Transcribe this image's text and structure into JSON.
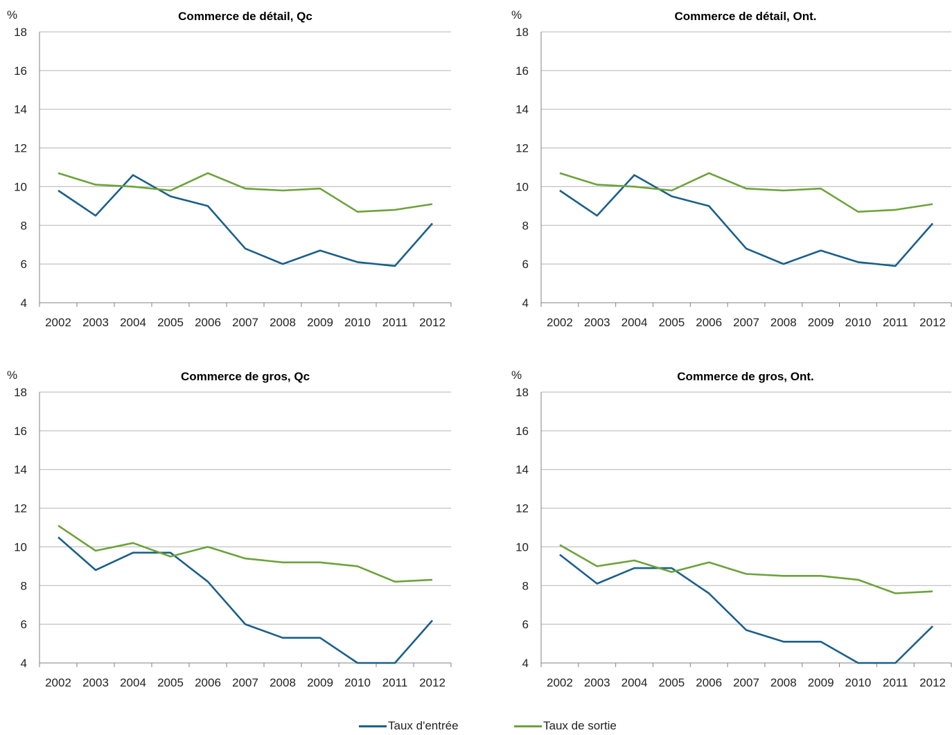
{
  "chart_data": [
    {
      "type": "line",
      "title": "Commerce de détail, Qc",
      "unit": "%",
      "categories": [
        "2002",
        "2003",
        "2004",
        "2005",
        "2006",
        "2007",
        "2008",
        "2009",
        "2010",
        "2011",
        "2012"
      ],
      "ylim": [
        4,
        18
      ],
      "yticks": [
        4,
        6,
        8,
        10,
        12,
        14,
        16,
        18
      ],
      "grid": true,
      "series": [
        {
          "name": "Taux d'entrée",
          "color": "#1a5f8a",
          "values": [
            9.8,
            8.5,
            10.6,
            9.5,
            9.0,
            6.8,
            6.0,
            6.7,
            6.1,
            5.9,
            8.1
          ]
        },
        {
          "name": "Taux de sortie",
          "color": "#6ca23a",
          "values": [
            10.7,
            10.1,
            10.0,
            9.8,
            10.7,
            9.9,
            9.8,
            9.9,
            8.7,
            8.8,
            9.1
          ]
        }
      ]
    },
    {
      "type": "line",
      "title": "Commerce de détail, Ont.",
      "unit": "%",
      "categories": [
        "2002",
        "2003",
        "2004",
        "2005",
        "2006",
        "2007",
        "2008",
        "2009",
        "2010",
        "2011",
        "2012"
      ],
      "ylim": [
        4,
        18
      ],
      "yticks": [
        4,
        6,
        8,
        10,
        12,
        14,
        16,
        18
      ],
      "grid": true,
      "series": [
        {
          "name": "Taux d'entrée",
          "color": "#1a5f8a",
          "values": [
            9.8,
            8.5,
            10.6,
            9.5,
            9.0,
            6.8,
            6.0,
            6.7,
            6.1,
            5.9,
            8.1
          ]
        },
        {
          "name": "Taux de sortie",
          "color": "#6ca23a",
          "values": [
            10.7,
            10.1,
            10.0,
            9.8,
            10.7,
            9.9,
            9.8,
            9.9,
            8.7,
            8.8,
            9.1
          ]
        }
      ]
    },
    {
      "type": "line",
      "title": "Commerce de gros, Qc",
      "unit": "%",
      "categories": [
        "2002",
        "2003",
        "2004",
        "2005",
        "2006",
        "2007",
        "2008",
        "2009",
        "2010",
        "2011",
        "2012"
      ],
      "ylim": [
        4,
        18
      ],
      "yticks": [
        4,
        6,
        8,
        10,
        12,
        14,
        16,
        18
      ],
      "grid": true,
      "series": [
        {
          "name": "Taux d'entrée",
          "color": "#1a5f8a",
          "values": [
            10.5,
            8.8,
            9.7,
            9.7,
            8.2,
            6.0,
            5.3,
            5.3,
            4.0,
            4.0,
            6.2
          ]
        },
        {
          "name": "Taux de sortie",
          "color": "#6ca23a",
          "values": [
            11.1,
            9.8,
            10.2,
            9.5,
            10.0,
            9.4,
            9.2,
            9.2,
            9.0,
            8.2,
            8.3
          ]
        }
      ]
    },
    {
      "type": "line",
      "title": "Commerce de gros, Ont.",
      "unit": "%",
      "categories": [
        "2002",
        "2003",
        "2004",
        "2005",
        "2006",
        "2007",
        "2008",
        "2009",
        "2010",
        "2011",
        "2012"
      ],
      "ylim": [
        4,
        18
      ],
      "yticks": [
        4,
        6,
        8,
        10,
        12,
        14,
        16,
        18
      ],
      "grid": true,
      "series": [
        {
          "name": "Taux d'entrée",
          "color": "#1a5f8a",
          "values": [
            9.6,
            8.1,
            8.9,
            8.9,
            7.6,
            5.7,
            5.1,
            5.1,
            4.0,
            4.0,
            5.9
          ]
        },
        {
          "name": "Taux de sortie",
          "color": "#6ca23a",
          "values": [
            10.1,
            9.0,
            9.3,
            8.7,
            9.2,
            8.6,
            8.5,
            8.5,
            8.3,
            7.6,
            7.7
          ]
        }
      ]
    }
  ],
  "legend": {
    "placement": "bottom-center",
    "items": [
      {
        "label": "Taux d'entrée",
        "color": "#1a5f8a"
      },
      {
        "label": "Taux de sortie",
        "color": "#6ca23a"
      }
    ]
  }
}
